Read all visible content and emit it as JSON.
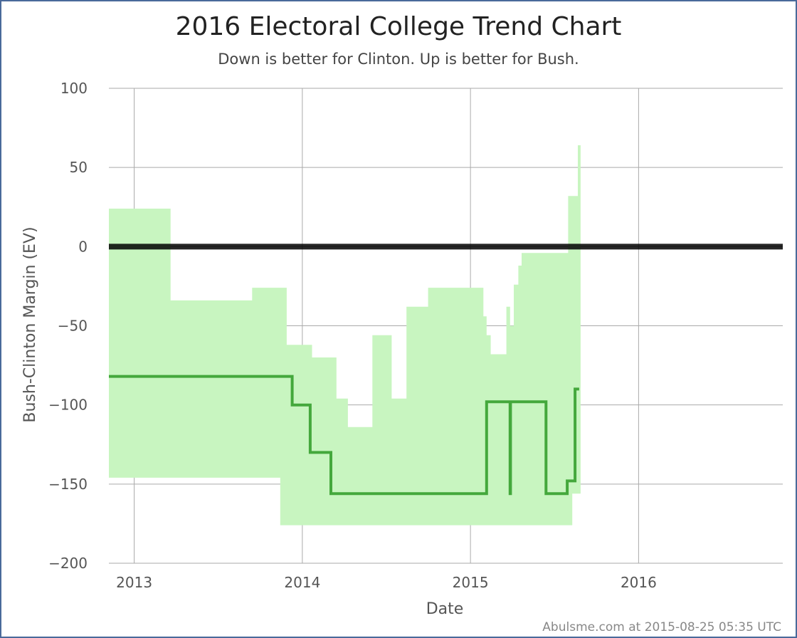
{
  "chart_data": {
    "type": "area",
    "title": "2016 Electoral College Trend Chart",
    "subtitle": "Down is better for Clinton. Up is better for Bush.",
    "xlabel": "Date",
    "ylabel": "Bush-Clinton Margin (EV)",
    "xlim": [
      "2012-11-07",
      "2016-11-09"
    ],
    "ylim": [
      -200,
      100
    ],
    "x_ticks": [
      "2013",
      "2014",
      "2015",
      "2016"
    ],
    "y_ticks": [
      "100",
      "50",
      "0",
      "−50",
      "−100",
      "−150",
      "−200"
    ],
    "grid": true,
    "zero_line": 0,
    "colors": {
      "band": "#c8f5c0",
      "line": "#44a83c",
      "zero": "#000000",
      "grid": "#aaaaaa",
      "border": "#4a6a9a"
    },
    "series": [
      {
        "kind": "band",
        "points": [
          [
            "2012-11-07",
            24,
            -146
          ],
          [
            "2013-03-21",
            -34,
            -146
          ],
          [
            "2013-09-14",
            -26,
            -146
          ],
          [
            "2013-11-14",
            -26,
            -176
          ],
          [
            "2013-11-28",
            -62,
            -176
          ],
          [
            "2014-01-22",
            -70,
            -176
          ],
          [
            "2014-03-16",
            -96,
            -176
          ],
          [
            "2014-04-10",
            -114,
            -176
          ],
          [
            "2014-06-02",
            -56,
            -176
          ],
          [
            "2014-07-14",
            -96,
            -176
          ],
          [
            "2014-08-15",
            -38,
            -176
          ],
          [
            "2014-10-01",
            -26,
            -176
          ],
          [
            "2015-01-29",
            -44,
            -176
          ],
          [
            "2015-02-05",
            -56,
            -176
          ],
          [
            "2015-02-14",
            -68,
            -176
          ],
          [
            "2015-03-20",
            -38,
            -176
          ],
          [
            "2015-03-28",
            -50,
            -176
          ],
          [
            "2015-04-05",
            -24,
            -176
          ],
          [
            "2015-04-15",
            -12,
            -176
          ],
          [
            "2015-04-22",
            -4,
            -176
          ],
          [
            "2015-07-25",
            -4,
            -176
          ],
          [
            "2015-08-01",
            32,
            -176
          ],
          [
            "2015-08-10",
            32,
            -156
          ],
          [
            "2015-08-22",
            64,
            -156
          ],
          [
            "2015-08-25",
            64,
            -156
          ]
        ]
      },
      {
        "kind": "line",
        "points": [
          [
            "2012-11-07",
            -82
          ],
          [
            "2013-12-10",
            -82
          ],
          [
            "2013-12-10",
            -100
          ],
          [
            "2014-01-18",
            -100
          ],
          [
            "2014-01-18",
            -130
          ],
          [
            "2014-03-04",
            -130
          ],
          [
            "2014-03-04",
            -156
          ],
          [
            "2015-02-05",
            -156
          ],
          [
            "2015-02-05",
            -98
          ],
          [
            "2015-03-28",
            -98
          ],
          [
            "2015-03-28",
            -156
          ],
          [
            "2015-03-29",
            -156
          ],
          [
            "2015-03-29",
            -98
          ],
          [
            "2015-06-14",
            -98
          ],
          [
            "2015-06-14",
            -156
          ],
          [
            "2015-07-30",
            -156
          ],
          [
            "2015-07-30",
            -148
          ],
          [
            "2015-08-16",
            -148
          ],
          [
            "2015-08-16",
            -90
          ],
          [
            "2015-08-25",
            -90
          ]
        ]
      }
    ]
  },
  "footer": {
    "credit": "Abulsme.com at 2015-08-25 05:35 UTC"
  }
}
